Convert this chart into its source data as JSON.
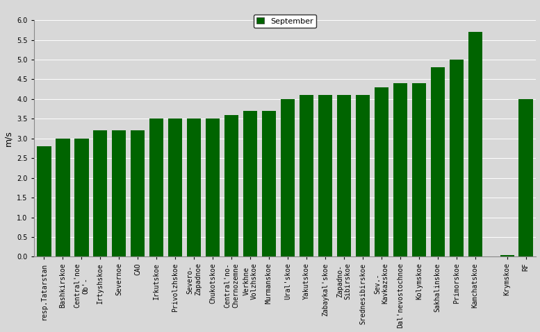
{
  "categories": [
    "resp.Tatarstan",
    "Bashkirskoe",
    "Central'noe\nOb'-",
    "Irtyshskoe",
    "Severnoe",
    "CAO",
    "Irkutskoe",
    "Privolzhskoe",
    "Severo-\nZapadnoe",
    "Chukotskoe",
    "Central'no-\nChernozemne",
    "Verkhne\nVolzhskoe",
    "Murmanskoe",
    "Ural'skoe",
    "Yakutskoe",
    "Zabaykal'skoe",
    "Zapadno-\nSibirskoe",
    "Srednesibirskoe",
    "Sev.-\nKavkazskoe",
    "Dal'nevostochnoe",
    "Kolymskoe",
    "Sakhalinskoe",
    "Primorskoe",
    "Kamchatskoe",
    "Krymskoe",
    "RF"
  ],
  "values": [
    2.8,
    3.0,
    3.0,
    3.2,
    3.2,
    3.2,
    3.5,
    3.5,
    3.5,
    3.5,
    3.6,
    3.7,
    3.7,
    4.0,
    4.1,
    4.1,
    4.1,
    4.1,
    4.3,
    4.4,
    4.4,
    4.8,
    5.0,
    5.7,
    0.05,
    4.0
  ],
  "bar_color": "#006400",
  "ylabel": "m/s",
  "ylim": [
    0,
    6
  ],
  "yticks": [
    0,
    0.5,
    1.0,
    1.5,
    2.0,
    2.5,
    3.0,
    3.5,
    4.0,
    4.5,
    5.0,
    5.5,
    6.0
  ],
  "legend_label": "September",
  "legend_color": "#006400",
  "bg_color": "#d8d8d8",
  "plot_bg_color": "#d8d8d8",
  "tick_fontsize": 7,
  "ylabel_fontsize": 9,
  "legend_fontsize": 8
}
